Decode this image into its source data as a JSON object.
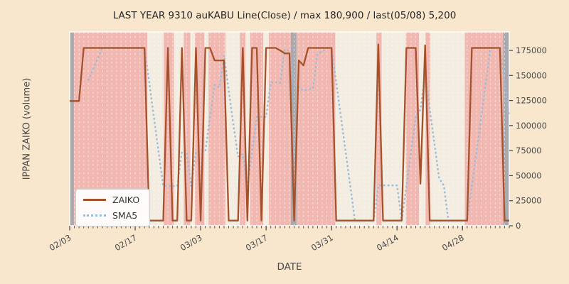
{
  "title": "LAST YEAR 9310 auKABU Line(Close) / max 180,900 / last(05/08) 5,200",
  "x_axis": {
    "label": "DATE"
  },
  "y_axis": {
    "label": "IPPAN ZAIKO (volume)"
  },
  "legend": {
    "items": [
      {
        "label": "ZAIKO",
        "style": "solid",
        "color": "#a5512b"
      },
      {
        "label": "SMA5",
        "style": "dotted",
        "color": "#99bcd9"
      }
    ]
  },
  "colors": {
    "figure_background": "#f8e7cd",
    "band_pink": "#f1b8b2",
    "band_beige": "#f2ece1",
    "band_gray": "#a9a9ae",
    "gridline": "#ffffff",
    "zaiko_line": "#a5512b",
    "sma5_line": "#99bcd9",
    "tick_text": "#4a4a4a",
    "spine": "#ffffff"
  },
  "chart_data": {
    "type": "line",
    "title": "LAST YEAR 9310 auKABU Line(Close) / max 180,900 / last(05/08) 5,200",
    "xlabel": "DATE",
    "ylabel": "IPPAN ZAIKO (volume)",
    "x_start_date": "02/03",
    "x_end_date": "05/08",
    "num_days": 95,
    "ylim": [
      0,
      183000
    ],
    "y_ticks": [
      0,
      25000,
      50000,
      75000,
      100000,
      125000,
      150000,
      175000
    ],
    "y_tick_side": "right",
    "x_ticks": [
      {
        "label": "02/03",
        "day": 0
      },
      {
        "label": "02/17",
        "day": 14
      },
      {
        "label": "03/03",
        "day": 28
      },
      {
        "label": "03/17",
        "day": 42
      },
      {
        "label": "03/31",
        "day": 56
      },
      {
        "label": "04/14",
        "day": 70
      },
      {
        "label": "04/28",
        "day": 84
      }
    ],
    "grid": "vertical-daily-dashed",
    "legend_position": "lower-left",
    "stats": {
      "max": 180900,
      "last_date": "05/08",
      "last_value": 5200
    },
    "series": [
      {
        "name": "ZAIKO",
        "style": "solid",
        "color": "#a5512b",
        "values": [
          124500,
          124500,
          124500,
          177500,
          177500,
          177500,
          177500,
          177500,
          177500,
          177500,
          177500,
          177500,
          177500,
          177500,
          177500,
          177500,
          177500,
          5200,
          5200,
          5200,
          5200,
          177500,
          5200,
          5200,
          177500,
          5200,
          5200,
          177500,
          5200,
          177500,
          177500,
          165000,
          165000,
          165000,
          5200,
          5200,
          5200,
          177500,
          5200,
          177500,
          177500,
          5200,
          177500,
          177500,
          177500,
          175000,
          172000,
          172000,
          5200,
          165000,
          160000,
          177500,
          177500,
          177500,
          177500,
          177500,
          177500,
          5200,
          5200,
          5200,
          5200,
          5200,
          5200,
          5200,
          5200,
          5200,
          180900,
          5200,
          5200,
          5200,
          5200,
          5200,
          177500,
          177500,
          177500,
          42000,
          180000,
          5200,
          5200,
          5200,
          5200,
          5200,
          5200,
          5200,
          5200,
          5200,
          177500,
          177500,
          177500,
          177500,
          177500,
          177500,
          177500,
          5200,
          5200
        ]
      },
      {
        "name": "SMA5",
        "style": "dotted",
        "color": "#99bcd9",
        "values": [
          null,
          null,
          null,
          null,
          145700,
          156300,
          166900,
          177500,
          177500,
          177500,
          177500,
          177500,
          177500,
          177500,
          177500,
          177500,
          177500,
          143040,
          108580,
          74120,
          39660,
          39660,
          39660,
          39660,
          74120,
          74120,
          39660,
          74120,
          74120,
          74120,
          108580,
          140540,
          138040,
          170000,
          135540,
          101080,
          69120,
          71620,
          39660,
          74120,
          108580,
          108580,
          108580,
          143040,
          143040,
          142540,
          175900,
          174800,
          140340,
          137840,
          134840,
          135940,
          137040,
          171500,
          174000,
          177500,
          177500,
          143040,
          108580,
          74120,
          39660,
          5200,
          5200,
          5200,
          5200,
          5200,
          40340,
          40340,
          40340,
          40340,
          40340,
          5200,
          39660,
          74120,
          108580,
          115940,
          150900,
          116440,
          81980,
          47520,
          40160,
          5200,
          5200,
          5200,
          5200,
          5200,
          39660,
          74120,
          108580,
          143040,
          177500,
          177500,
          177500,
          143040,
          108580
        ]
      }
    ],
    "background_bands": [
      {
        "start": 0,
        "end": 0.9,
        "color": "gray"
      },
      {
        "start": 0.9,
        "end": 16.6,
        "color": "pink"
      },
      {
        "start": 16.6,
        "end": 20.1,
        "color": "beige"
      },
      {
        "start": 20.1,
        "end": 22.3,
        "color": "pink"
      },
      {
        "start": 22.3,
        "end": 24.4,
        "color": "beige"
      },
      {
        "start": 24.4,
        "end": 25.8,
        "color": "pink"
      },
      {
        "start": 25.8,
        "end": 26.8,
        "color": "beige"
      },
      {
        "start": 26.8,
        "end": 28.8,
        "color": "pink"
      },
      {
        "start": 28.8,
        "end": 29.7,
        "color": "beige"
      },
      {
        "start": 29.7,
        "end": 33.3,
        "color": "pink"
      },
      {
        "start": 33.3,
        "end": 36.4,
        "color": "beige"
      },
      {
        "start": 36.4,
        "end": 37.6,
        "color": "pink"
      },
      {
        "start": 37.6,
        "end": 38.6,
        "color": "beige"
      },
      {
        "start": 38.6,
        "end": 41.4,
        "color": "pink"
      },
      {
        "start": 41.4,
        "end": 42.6,
        "color": "beige"
      },
      {
        "start": 42.6,
        "end": 47.3,
        "color": "pink"
      },
      {
        "start": 47.3,
        "end": 48.5,
        "color": "gray"
      },
      {
        "start": 48.5,
        "end": 56.8,
        "color": "pink"
      },
      {
        "start": 56.8,
        "end": 65.6,
        "color": "beige"
      },
      {
        "start": 65.6,
        "end": 66.7,
        "color": "pink"
      },
      {
        "start": 66.7,
        "end": 71.9,
        "color": "beige"
      },
      {
        "start": 71.9,
        "end": 74.7,
        "color": "pink"
      },
      {
        "start": 74.7,
        "end": 76.1,
        "color": "beige"
      },
      {
        "start": 76.1,
        "end": 77.1,
        "color": "pink"
      },
      {
        "start": 77.1,
        "end": 84.5,
        "color": "beige"
      },
      {
        "start": 84.5,
        "end": 92.7,
        "color": "pink"
      },
      {
        "start": 92.7,
        "end": 94,
        "color": "gray"
      }
    ]
  }
}
